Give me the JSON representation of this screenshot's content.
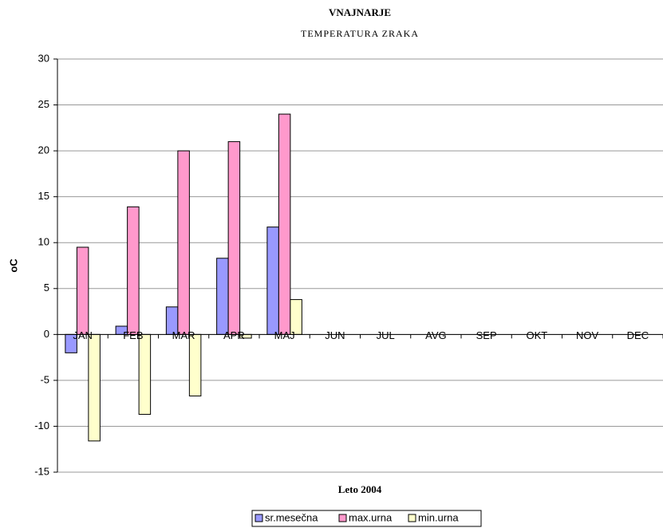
{
  "chart_data": {
    "type": "bar",
    "title": "VNAJNARJE",
    "subtitle": "TEMPERATURA ZRAKA",
    "x_label": "Leto 2004",
    "y_label": "oC",
    "categories": [
      "JAN",
      "FEB",
      "MAR",
      "APR",
      "MAJ",
      "JUN",
      "JUL",
      "AVG",
      "SEP",
      "OKT",
      "NOV",
      "DEC"
    ],
    "series": [
      {
        "name": "sr.mesečna",
        "color": "#9999ff",
        "values": [
          -2,
          0.9,
          3,
          8.3,
          11.7,
          null,
          null,
          null,
          null,
          null,
          null,
          null
        ]
      },
      {
        "name": "max.urna",
        "color": "#ff99cc",
        "values": [
          9.5,
          13.9,
          20,
          21,
          24,
          null,
          null,
          null,
          null,
          null,
          null,
          null
        ]
      },
      {
        "name": "min.urna",
        "color": "#ffffcc",
        "values": [
          -11.6,
          -8.7,
          -6.7,
          -0.4,
          3.8,
          null,
          null,
          null,
          null,
          null,
          null,
          null
        ]
      }
    ],
    "ylim": [
      -15,
      30
    ],
    "yticks": [
      -15,
      -10,
      -5,
      0,
      5,
      10,
      15,
      20,
      25,
      30
    ],
    "grid": true,
    "legend": "bottom"
  }
}
